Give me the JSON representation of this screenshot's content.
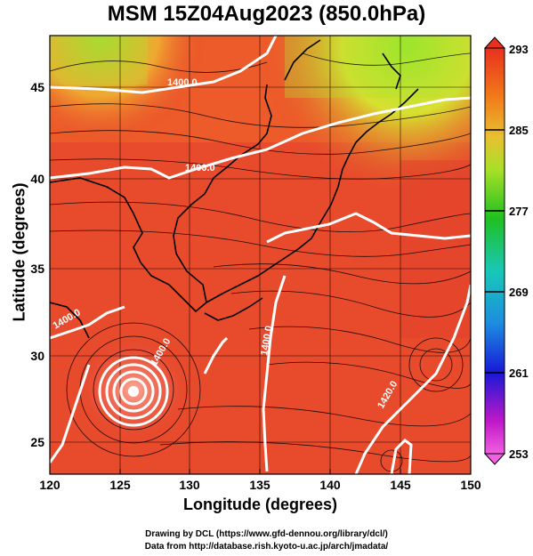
{
  "title": "MSM 15Z04Aug2023 (850.0hPa)",
  "x_axis": {
    "title": "Longitude (degrees)",
    "range": [
      120,
      150
    ],
    "ticks": [
      "120",
      "125",
      "130",
      "135",
      "140",
      "145",
      "150"
    ]
  },
  "y_axis": {
    "title": "Latitude  (degrees)",
    "range": [
      22.5,
      47.5
    ],
    "ticks": [
      "25",
      "30",
      "35",
      "40",
      "45"
    ]
  },
  "colorbar": {
    "range": [
      253,
      293
    ],
    "ticks": [
      "293",
      "285",
      "277",
      "269",
      "261",
      "253"
    ]
  },
  "contour_labels": [
    {
      "text": "1400.0",
      "lon": 128.5,
      "lat": 45.6
    },
    {
      "text": "1400.0",
      "lon": 130.0,
      "lat": 41.0
    },
    {
      "text": "1400.0",
      "lon": 121.8,
      "lat": 31.8
    },
    {
      "text": "1400.0",
      "lon": 128.0,
      "lat": 28.5
    },
    {
      "text": "1400.0",
      "lon": 135.8,
      "lat": 31.0
    },
    {
      "text": "1420.0",
      "lon": 144.2,
      "lat": 28.8
    }
  ],
  "credits": {
    "line1": "Drawing by DCL (https://www.gfd-dennou.org/library/dcl/)",
    "line2": "Data from http://database.rish.kyoto-u.ac.jp/arch/jmadata/"
  },
  "colors": {
    "map_base": "#e84a2c",
    "coast": "#000000",
    "contour": "#ffffff"
  }
}
